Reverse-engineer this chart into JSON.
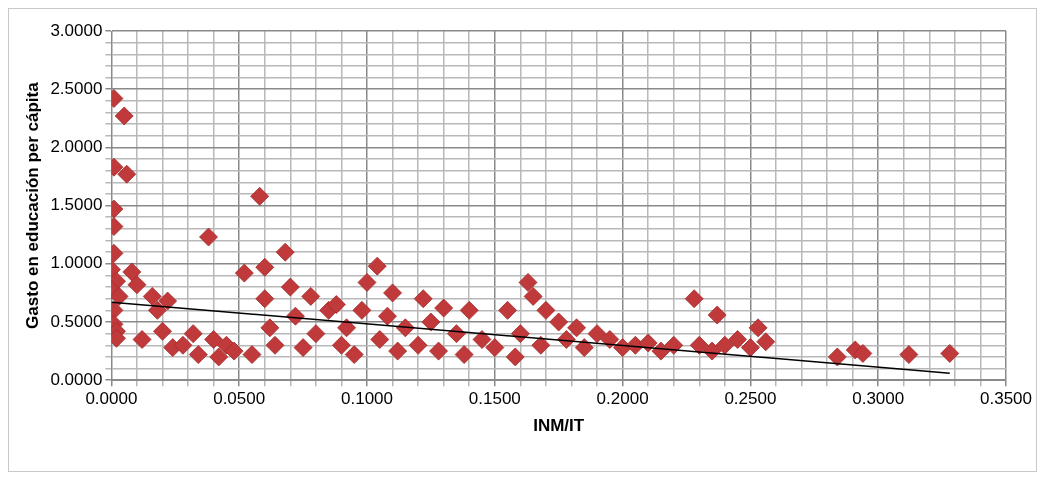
{
  "chart_data": {
    "type": "scatter",
    "xlabel": "INM/IT",
    "ylabel": "Gasto en educación per cápita",
    "grid": true,
    "legend": false,
    "xlim": [
      0,
      0.35
    ],
    "ylim": [
      0,
      3
    ],
    "xticks": [
      {
        "value": 0,
        "label": "0.0000"
      },
      {
        "value": 0.01,
        "label": null
      },
      {
        "value": 0.02,
        "label": null
      },
      {
        "value": 0.03,
        "label": null
      },
      {
        "value": 0.04,
        "label": null
      },
      {
        "value": 0.05,
        "label": "0.0500"
      },
      {
        "value": 0.06,
        "label": null
      },
      {
        "value": 0.07,
        "label": null
      },
      {
        "value": 0.08,
        "label": null
      },
      {
        "value": 0.09,
        "label": null
      },
      {
        "value": 0.1,
        "label": "0.1000"
      },
      {
        "value": 0.11,
        "label": null
      },
      {
        "value": 0.12,
        "label": null
      },
      {
        "value": 0.13,
        "label": null
      },
      {
        "value": 0.14,
        "label": null
      },
      {
        "value": 0.15,
        "label": "0.1500"
      },
      {
        "value": 0.16,
        "label": null
      },
      {
        "value": 0.17,
        "label": null
      },
      {
        "value": 0.18,
        "label": null
      },
      {
        "value": 0.19,
        "label": null
      },
      {
        "value": 0.2,
        "label": "0.2000"
      },
      {
        "value": 0.21,
        "label": null
      },
      {
        "value": 0.22,
        "label": null
      },
      {
        "value": 0.23,
        "label": null
      },
      {
        "value": 0.24,
        "label": null
      },
      {
        "value": 0.25,
        "label": "0.2500"
      },
      {
        "value": 0.26,
        "label": null
      },
      {
        "value": 0.27,
        "label": null
      },
      {
        "value": 0.28,
        "label": null
      },
      {
        "value": 0.29,
        "label": null
      },
      {
        "value": 0.3,
        "label": "0.3000"
      },
      {
        "value": 0.31,
        "label": null
      },
      {
        "value": 0.32,
        "label": null
      },
      {
        "value": 0.33,
        "label": null
      },
      {
        "value": 0.34,
        "label": null
      },
      {
        "value": 0.35,
        "label": "0.3500"
      }
    ],
    "yticks": [
      {
        "value": 0,
        "label": "0.0000"
      },
      {
        "value": 0.1,
        "label": null
      },
      {
        "value": 0.2,
        "label": null
      },
      {
        "value": 0.3,
        "label": null
      },
      {
        "value": 0.4,
        "label": null
      },
      {
        "value": 0.5,
        "label": "0.5000"
      },
      {
        "value": 0.6,
        "label": null
      },
      {
        "value": 0.7,
        "label": null
      },
      {
        "value": 0.8,
        "label": null
      },
      {
        "value": 0.9,
        "label": null
      },
      {
        "value": 1,
        "label": "1.0000"
      },
      {
        "value": 1.1,
        "label": null
      },
      {
        "value": 1.2,
        "label": null
      },
      {
        "value": 1.3,
        "label": null
      },
      {
        "value": 1.4,
        "label": null
      },
      {
        "value": 1.5,
        "label": "1.5000"
      },
      {
        "value": 1.6,
        "label": null
      },
      {
        "value": 1.7,
        "label": null
      },
      {
        "value": 1.8,
        "label": null
      },
      {
        "value": 1.9,
        "label": null
      },
      {
        "value": 2,
        "label": "2.0000"
      },
      {
        "value": 2.1,
        "label": null
      },
      {
        "value": 2.2,
        "label": null
      },
      {
        "value": 2.3,
        "label": null
      },
      {
        "value": 2.4,
        "label": null
      },
      {
        "value": 2.5,
        "label": "2.5000"
      },
      {
        "value": 2.6,
        "label": null
      },
      {
        "value": 2.7,
        "label": null
      },
      {
        "value": 2.8,
        "label": null
      },
      {
        "value": 2.9,
        "label": null
      },
      {
        "value": 3,
        "label": "3.0000"
      }
    ],
    "series": [
      {
        "marker": "diamond",
        "color": "#c0393b",
        "x": [
          0.001,
          0.005,
          0.001,
          0.006,
          0.001,
          0.001,
          0.001,
          0.0,
          0.002,
          0.0,
          0.003,
          0.008,
          0.001,
          0.001,
          0.002,
          0.002,
          0.01,
          0.012,
          0.016,
          0.018,
          0.02,
          0.022,
          0.024,
          0.028,
          0.032,
          0.034,
          0.038,
          0.04,
          0.042,
          0.045,
          0.048,
          0.052,
          0.055,
          0.058,
          0.06,
          0.06,
          0.062,
          0.064,
          0.068,
          0.07,
          0.072,
          0.075,
          0.078,
          0.08,
          0.085,
          0.088,
          0.09,
          0.092,
          0.095,
          0.098,
          0.1,
          0.104,
          0.105,
          0.108,
          0.11,
          0.112,
          0.115,
          0.12,
          0.122,
          0.125,
          0.128,
          0.13,
          0.135,
          0.138,
          0.14,
          0.145,
          0.15,
          0.155,
          0.158,
          0.16,
          0.163,
          0.165,
          0.168,
          0.17,
          0.175,
          0.178,
          0.182,
          0.185,
          0.19,
          0.195,
          0.2,
          0.205,
          0.21,
          0.215,
          0.22,
          0.228,
          0.23,
          0.235,
          0.237,
          0.24,
          0.245,
          0.25,
          0.253,
          0.256,
          0.284,
          0.291,
          0.294,
          0.312,
          0.328
        ],
        "values": [
          2.42,
          2.27,
          1.83,
          1.77,
          1.47,
          1.32,
          1.09,
          0.95,
          0.85,
          0.78,
          0.72,
          0.93,
          0.6,
          0.48,
          0.42,
          0.36,
          0.82,
          0.35,
          0.72,
          0.6,
          0.42,
          0.68,
          0.28,
          0.3,
          0.4,
          0.22,
          1.23,
          0.35,
          0.2,
          0.3,
          0.25,
          0.92,
          0.22,
          1.58,
          0.97,
          0.7,
          0.45,
          0.3,
          1.1,
          0.8,
          0.55,
          0.28,
          0.72,
          0.4,
          0.6,
          0.65,
          0.3,
          0.45,
          0.22,
          0.6,
          0.84,
          0.98,
          0.35,
          0.55,
          0.75,
          0.25,
          0.45,
          0.3,
          0.7,
          0.5,
          0.25,
          0.62,
          0.4,
          0.22,
          0.6,
          0.35,
          0.28,
          0.6,
          0.2,
          0.4,
          0.84,
          0.72,
          0.3,
          0.6,
          0.5,
          0.35,
          0.45,
          0.28,
          0.4,
          0.35,
          0.28,
          0.3,
          0.32,
          0.25,
          0.3,
          0.7,
          0.3,
          0.25,
          0.56,
          0.3,
          0.35,
          0.28,
          0.45,
          0.33,
          0.2,
          0.26,
          0.23,
          0.22,
          0.23
        ]
      },
      {
        "type": "line",
        "marker": "none",
        "color": "#000000",
        "x": [
          0,
          0.328
        ],
        "values": [
          0.67,
          0.06
        ]
      }
    ]
  }
}
